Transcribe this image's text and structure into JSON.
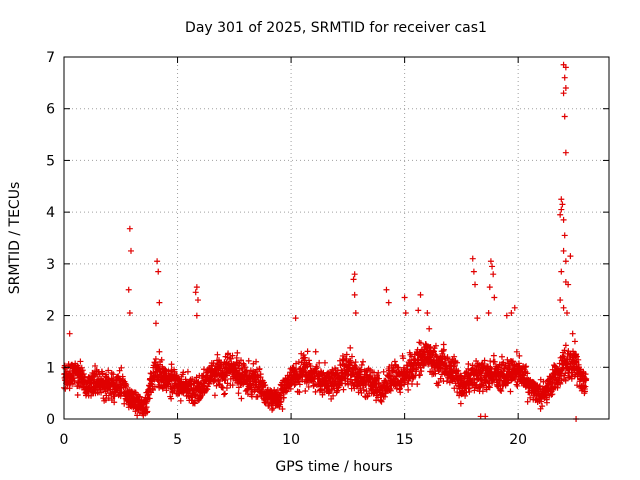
{
  "chart_data": {
    "type": "scatter",
    "title": "Day 301 of 2025, SRMTID for receiver cas1",
    "xlabel": "GPS time / hours",
    "ylabel": "SRMTID / TECUs",
    "xlim": [
      0,
      24
    ],
    "ylim": [
      0,
      7
    ],
    "xticks": [
      0,
      5,
      10,
      15,
      20
    ],
    "yticks": [
      0,
      1,
      2,
      3,
      4,
      5,
      6,
      7
    ],
    "grid": true,
    "marker": "+",
    "series": [
      {
        "name": "SRMTID",
        "color": "#e00000",
        "baseline": [
          [
            0.0,
            0.75
          ],
          [
            0.5,
            0.9
          ],
          [
            1.0,
            0.65
          ],
          [
            1.5,
            0.7
          ],
          [
            2.0,
            0.6
          ],
          [
            2.5,
            0.7
          ],
          [
            3.0,
            0.35
          ],
          [
            3.5,
            0.2
          ],
          [
            4.0,
            0.9
          ],
          [
            4.5,
            0.8
          ],
          [
            5.0,
            0.7
          ],
          [
            5.5,
            0.55
          ],
          [
            6.0,
            0.6
          ],
          [
            6.5,
            0.85
          ],
          [
            7.0,
            0.9
          ],
          [
            7.5,
            0.95
          ],
          [
            8.0,
            0.8
          ],
          [
            8.5,
            0.75
          ],
          [
            9.0,
            0.4
          ],
          [
            9.5,
            0.4
          ],
          [
            10.0,
            0.8
          ],
          [
            10.5,
            0.9
          ],
          [
            11.0,
            0.85
          ],
          [
            11.5,
            0.7
          ],
          [
            12.0,
            0.8
          ],
          [
            12.5,
            0.95
          ],
          [
            13.0,
            0.8
          ],
          [
            13.5,
            0.7
          ],
          [
            14.0,
            0.55
          ],
          [
            14.5,
            0.8
          ],
          [
            15.0,
            0.9
          ],
          [
            15.5,
            1.05
          ],
          [
            16.0,
            1.25
          ],
          [
            16.5,
            1.1
          ],
          [
            17.0,
            1.0
          ],
          [
            17.5,
            0.65
          ],
          [
            18.0,
            0.8
          ],
          [
            18.5,
            0.85
          ],
          [
            19.0,
            0.9
          ],
          [
            19.5,
            0.85
          ],
          [
            20.0,
            0.95
          ],
          [
            20.5,
            0.6
          ],
          [
            21.0,
            0.45
          ],
          [
            21.5,
            0.7
          ],
          [
            22.0,
            1.05
          ],
          [
            22.5,
            1.05
          ],
          [
            23.0,
            0.65
          ]
        ],
        "outliers": [
          [
            0.25,
            1.65
          ],
          [
            2.9,
            3.68
          ],
          [
            2.95,
            3.25
          ],
          [
            2.85,
            2.5
          ],
          [
            2.9,
            2.05
          ],
          [
            4.1,
            3.05
          ],
          [
            4.15,
            2.85
          ],
          [
            4.2,
            2.25
          ],
          [
            4.05,
            1.85
          ],
          [
            5.85,
            2.55
          ],
          [
            5.8,
            2.45
          ],
          [
            5.9,
            2.3
          ],
          [
            5.85,
            2.0
          ],
          [
            10.2,
            1.95
          ],
          [
            12.8,
            2.8
          ],
          [
            12.75,
            2.7
          ],
          [
            12.8,
            2.4
          ],
          [
            12.85,
            2.05
          ],
          [
            14.2,
            2.5
          ],
          [
            14.3,
            2.25
          ],
          [
            15.0,
            2.35
          ],
          [
            15.05,
            2.05
          ],
          [
            15.6,
            2.1
          ],
          [
            15.7,
            2.4
          ],
          [
            16.0,
            2.05
          ],
          [
            18.0,
            3.1
          ],
          [
            18.05,
            2.85
          ],
          [
            18.1,
            2.6
          ],
          [
            18.2,
            1.95
          ],
          [
            18.8,
            3.05
          ],
          [
            18.85,
            2.95
          ],
          [
            18.9,
            2.8
          ],
          [
            18.75,
            2.55
          ],
          [
            18.95,
            2.35
          ],
          [
            18.7,
            2.05
          ],
          [
            19.5,
            2.0
          ],
          [
            19.7,
            2.05
          ],
          [
            19.85,
            2.15
          ],
          [
            22.0,
            6.85
          ],
          [
            22.1,
            6.8
          ],
          [
            22.05,
            6.6
          ],
          [
            22.1,
            6.4
          ],
          [
            22.0,
            6.3
          ],
          [
            22.05,
            5.85
          ],
          [
            22.1,
            5.15
          ],
          [
            21.9,
            4.25
          ],
          [
            21.95,
            4.15
          ],
          [
            21.9,
            4.05
          ],
          [
            21.85,
            3.95
          ],
          [
            22.0,
            3.85
          ],
          [
            22.05,
            3.55
          ],
          [
            22.0,
            3.25
          ],
          [
            22.1,
            3.05
          ],
          [
            21.9,
            2.85
          ],
          [
            22.1,
            2.65
          ],
          [
            22.2,
            2.6
          ],
          [
            21.85,
            2.3
          ],
          [
            22.0,
            2.15
          ],
          [
            22.15,
            2.05
          ],
          [
            22.3,
            3.15
          ],
          [
            22.4,
            1.65
          ],
          [
            22.5,
            1.5
          ],
          [
            18.35,
            0.05
          ],
          [
            18.55,
            0.05
          ],
          [
            22.55,
            0.0
          ],
          [
            4.2,
            1.3
          ]
        ]
      }
    ]
  }
}
